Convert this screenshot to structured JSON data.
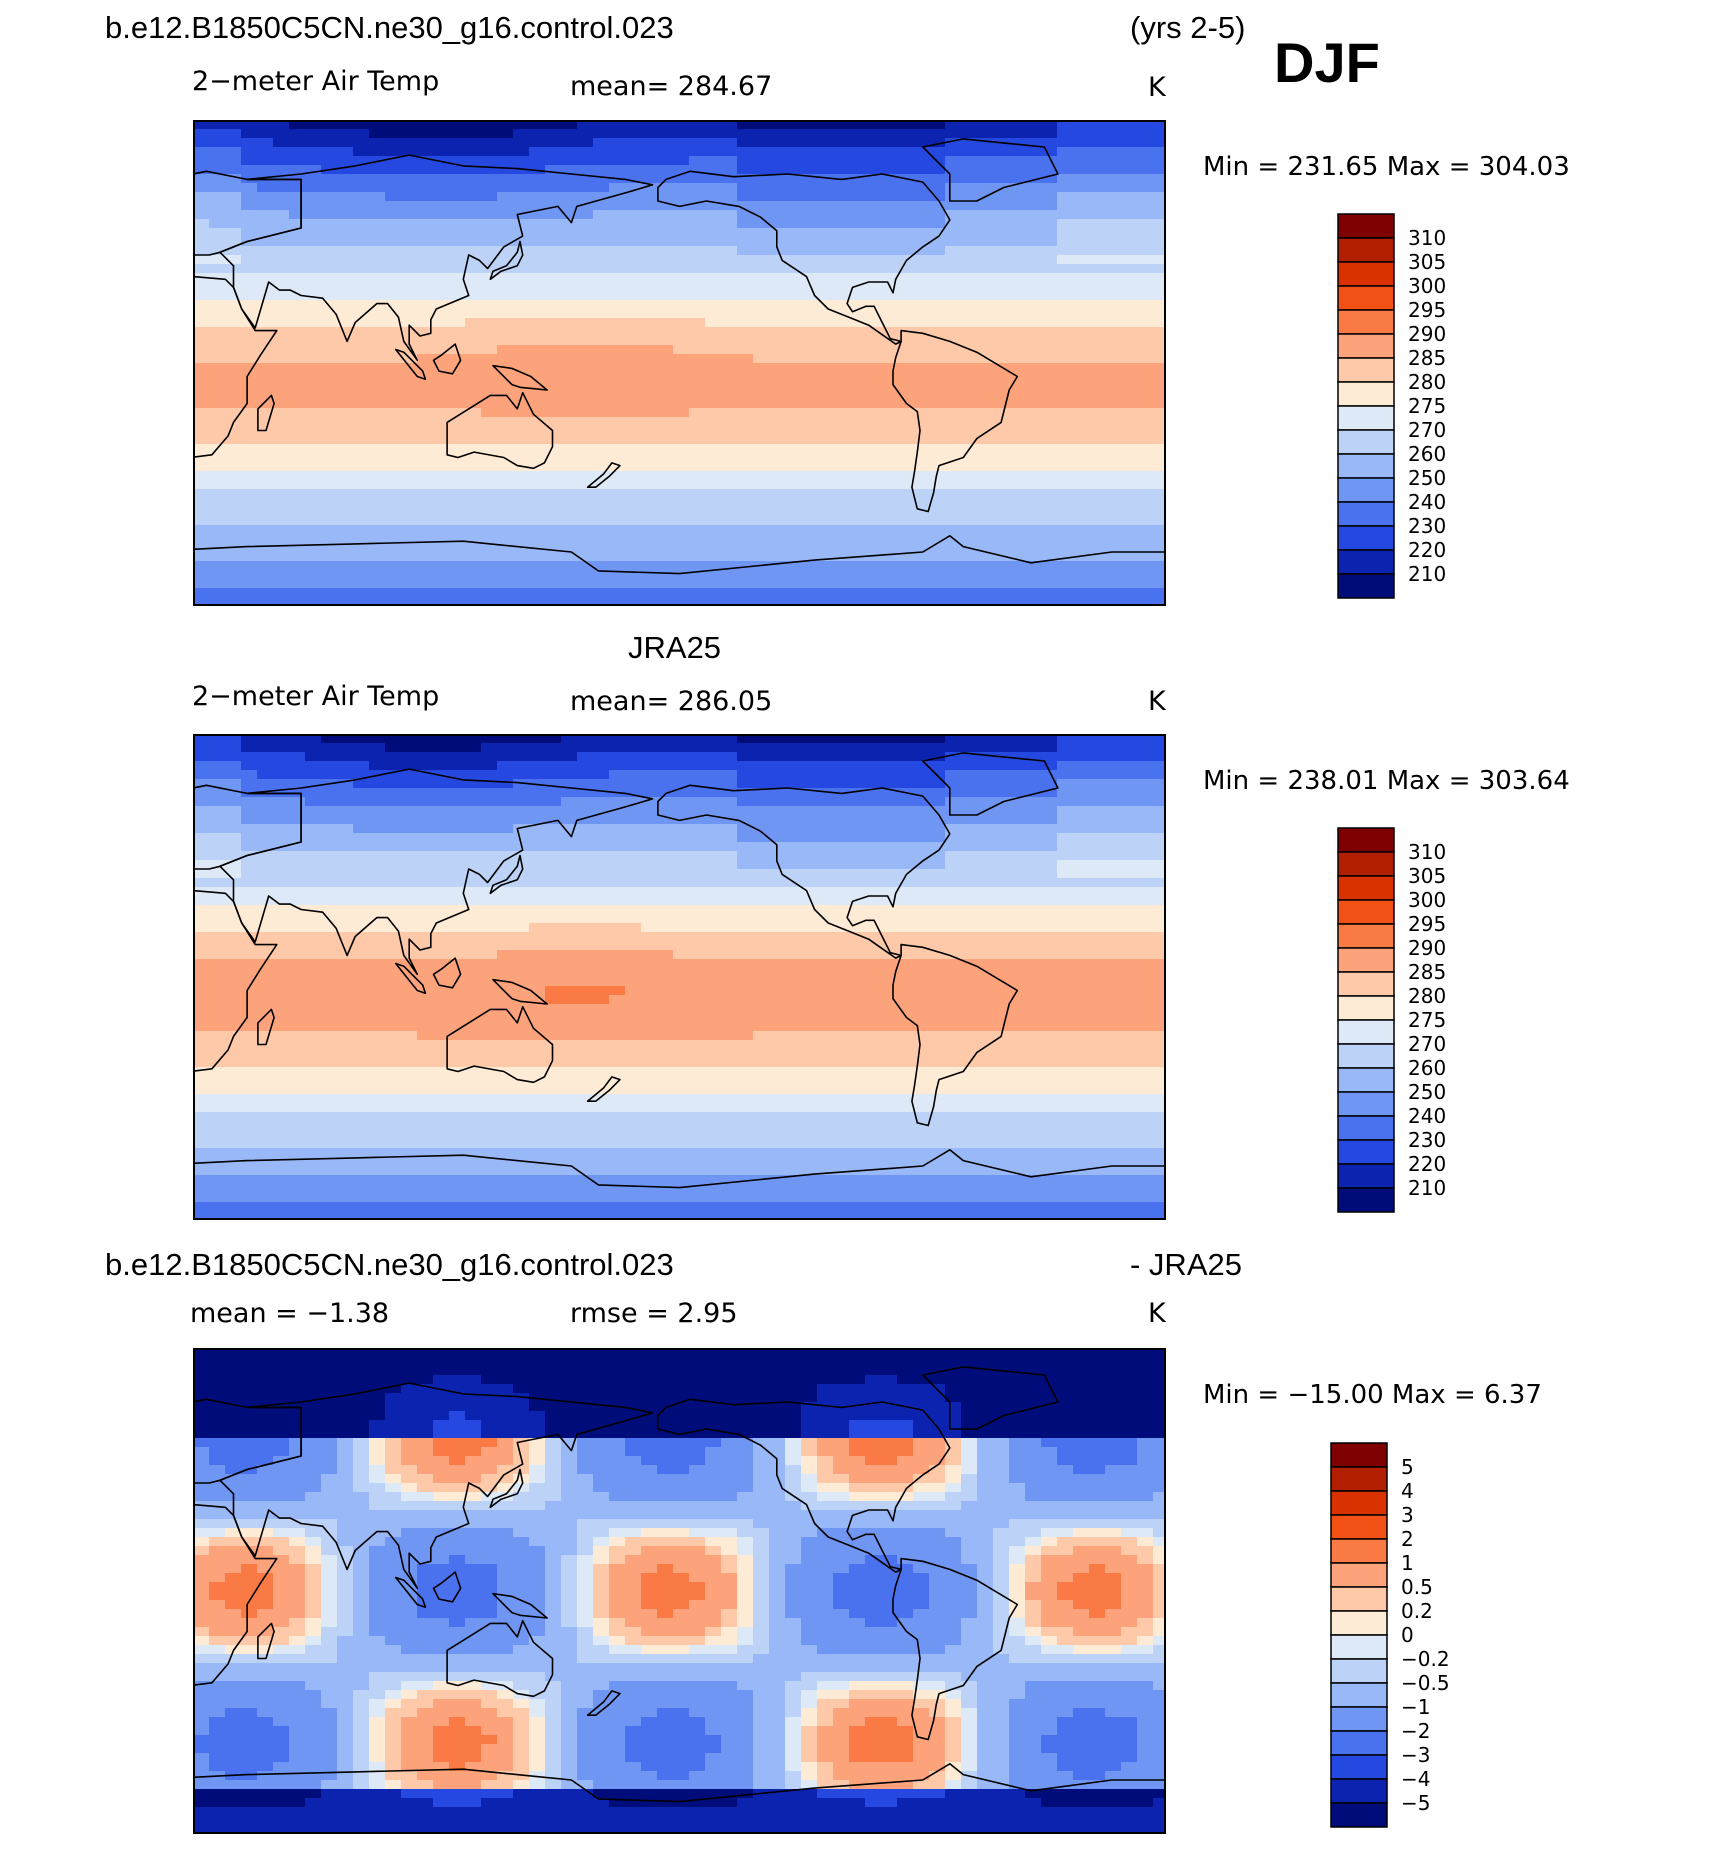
{
  "figure": {
    "season": "DJF",
    "top_left": "b.e12.B1850C5CN.ne30_g16.control.023",
    "top_right": "(yrs 2-5)",
    "middle_title": "JRA25",
    "bottom_left": "b.e12.B1850C5CN.ne30_g16.control.023",
    "bottom_right": "- JRA25"
  },
  "panels": [
    {
      "label": "2−meter Air Temp",
      "stat1": "mean=  284.67",
      "stat2": "",
      "units": "K",
      "minmax": "Min  =  231.65  Max  =  304.03",
      "field": "model_temperature"
    },
    {
      "label": "2−meter Air Temp",
      "stat1": "mean=  286.05",
      "stat2": "",
      "units": "K",
      "minmax": "Min  =  238.01  Max  =  303.64",
      "field": "observed_temperature"
    },
    {
      "label": "",
      "stat1": "mean =    −1.38",
      "stat2": "rmse =     2.95",
      "units": "K",
      "minmax": "Min  =  −15.00  Max  =     6.37",
      "field": "difference"
    }
  ],
  "colorbars": {
    "temperature": {
      "levels": [
        "310",
        "305",
        "300",
        "295",
        "290",
        "285",
        "280",
        "275",
        "270",
        "260",
        "250",
        "240",
        "230",
        "220",
        "210"
      ],
      "colors": [
        "#7f0000",
        "#b21f00",
        "#d93200",
        "#f25015",
        "#fa7a45",
        "#fca37c",
        "#fdc9a9",
        "#fdebd6",
        "#dde9f6",
        "#bcd3f7",
        "#98b8f7",
        "#6f96f2",
        "#4a71ee",
        "#2448e0",
        "#0c23b0",
        "#000c7a"
      ]
    },
    "difference": {
      "levels": [
        "5",
        "4",
        "3",
        "2",
        "1",
        "0.5",
        "0.2",
        "0",
        "−0.2",
        "−0.5",
        "−1",
        "−2",
        "−3",
        "−4",
        "−5"
      ],
      "colors": [
        "#7f0000",
        "#b21f00",
        "#d93200",
        "#f25015",
        "#fa7a45",
        "#fca37c",
        "#fdc9a9",
        "#fdebd6",
        "#dde9f6",
        "#bcd3f7",
        "#98b8f7",
        "#6f96f2",
        "#4a71ee",
        "#2448e0",
        "#0c23b0",
        "#000c7a"
      ]
    }
  }
}
